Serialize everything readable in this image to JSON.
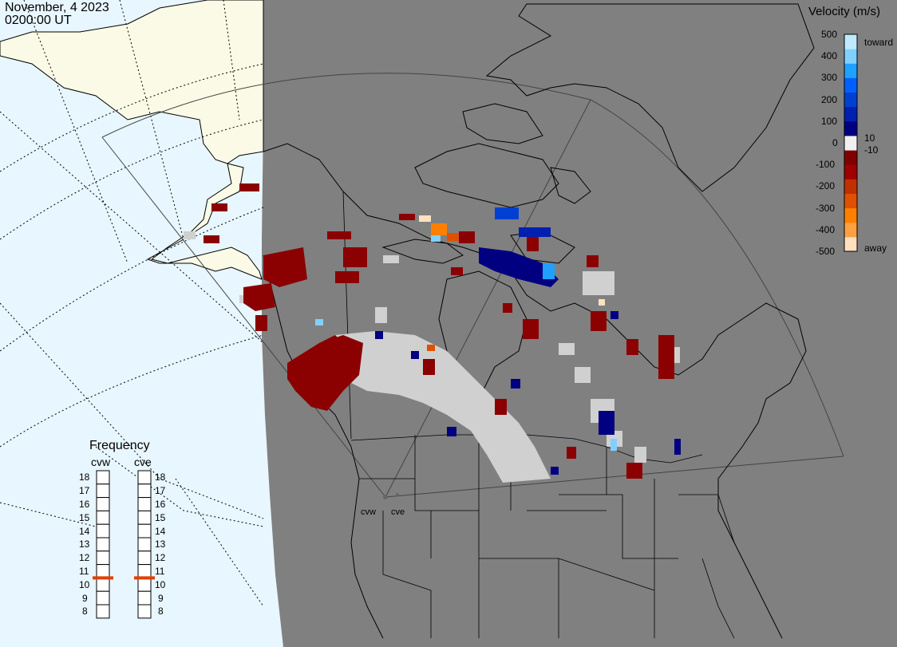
{
  "header": {
    "date": "November, 4 2023",
    "time": "0200:00 UT"
  },
  "colorbar": {
    "title": "Velocity (m/s)",
    "ticks": [
      "500",
      "400",
      "300",
      "200",
      "100",
      "0",
      "-100",
      "-200",
      "-300",
      "-400",
      "-500"
    ],
    "extra_ticks": [
      "10",
      "-10"
    ],
    "toward_label": "toward",
    "away_label": "away",
    "colors": [
      "#ffe0c0",
      "#ffa040",
      "#ff8000",
      "#e05000",
      "#c03000",
      "#a00000",
      "#800000",
      "#f0f0f0",
      "#000080",
      "#0020b0",
      "#0040d0",
      "#0060ff",
      "#20a0ff",
      "#80d0ff",
      "#c0e8ff"
    ]
  },
  "frequency": {
    "title": "Frequency",
    "radars": [
      {
        "name": "cvw",
        "frequency_mhz": 11
      },
      {
        "name": "cve",
        "frequency_mhz": 11
      }
    ],
    "scale": [
      "18",
      "17",
      "16",
      "15",
      "14",
      "13",
      "12",
      "11",
      "10",
      "9",
      "8"
    ]
  },
  "radar_sites": [
    "cvw",
    "cve"
  ],
  "colors": {
    "ocean": "#e8f6ff",
    "night_land": "#808080",
    "day_land": "#fafae6",
    "ground_scatter": "#d0d0d0",
    "frequency_marker": "#e04000"
  }
}
